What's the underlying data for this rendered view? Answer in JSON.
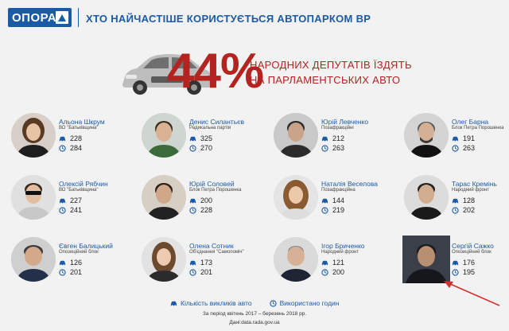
{
  "header": {
    "logo_text": "ОПОРА",
    "title": "ХТО НАЙЧАСТІШЕ КОРИСТУЄТЬСЯ АВТОПАРКОМ ВР"
  },
  "hero": {
    "percent": "44%",
    "line1": "НАРОДНИХ ДЕПУТАТІВ ЇЗДЯТЬ",
    "line2": "НА ПАРЛАМЕНТСЬКИХ АВТО"
  },
  "deputies": [
    {
      "name": "Альона Шкрум",
      "party": "ВО \"Батьківщина\"",
      "calls": "228",
      "hours": "284"
    },
    {
      "name": "Денис Силантьєв",
      "party": "Радикальна партія",
      "calls": "325",
      "hours": "270"
    },
    {
      "name": "Юрій Левченко",
      "party": "Позафракційні",
      "calls": "212",
      "hours": "263"
    },
    {
      "name": "Олег Барна",
      "party": "Блок Петра Порошенка",
      "calls": "191",
      "hours": "263"
    },
    {
      "name": "Олексій Рябчин",
      "party": "ВО \"Батьківщина\"",
      "calls": "227",
      "hours": "241"
    },
    {
      "name": "Юрій Соловей",
      "party": "Блок Петра Порошенка",
      "calls": "200",
      "hours": "228"
    },
    {
      "name": "Наталія Веселова",
      "party": "Позафракційна",
      "calls": "144",
      "hours": "219"
    },
    {
      "name": "Тарас Кремінь",
      "party": "Народний фронт",
      "calls": "128",
      "hours": "202"
    },
    {
      "name": "Євген Балицький",
      "party": "Опозиційний блок",
      "calls": "126",
      "hours": "201"
    },
    {
      "name": "Олена Сотник",
      "party": "Об'єднання \"Самопоміч\"",
      "calls": "173",
      "hours": "201"
    },
    {
      "name": "Ігор Бриченко",
      "party": "Народний фронт",
      "calls": "121",
      "hours": "200"
    },
    {
      "name": "Сергій Сажко",
      "party": "Опозиційний блок",
      "calls": "176",
      "hours": "195"
    }
  ],
  "legend": {
    "calls_label": "Кількість викликів авто",
    "hours_label": "Використано годин"
  },
  "footer": {
    "period": "За період квітень 2017 – березень 2018 рр.",
    "source": "Дані:data.rada.gov.ua"
  },
  "colors": {
    "accent": "#1a5aa6",
    "highlight": "#b3231f",
    "arrow": "#d0312d"
  }
}
